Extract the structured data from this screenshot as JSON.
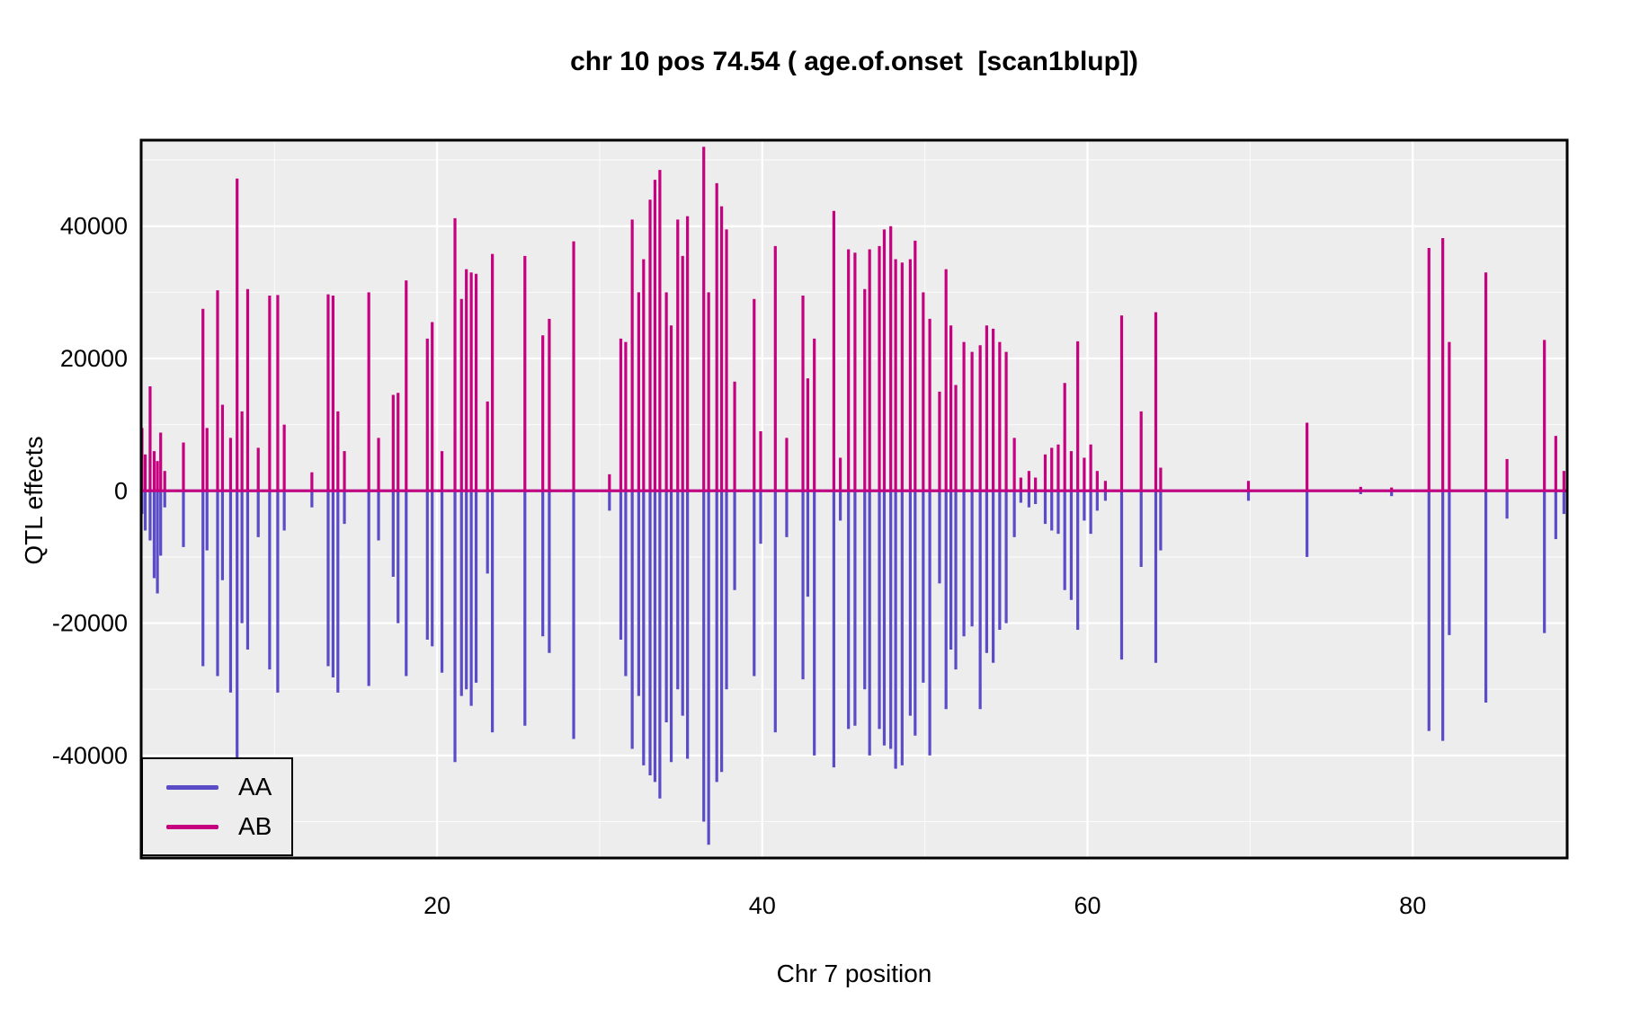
{
  "title": "chr 10 pos 74.54 ( age.of.onset  [scan1blup])",
  "colors": {
    "aa_line": "#5A4BC7",
    "ab_line": "#C5017F",
    "panel_bg": "#EDEDED",
    "grid_major": "#FFFFFF",
    "grid_minor": "#FFFFFF",
    "panel_border": "#000000",
    "text": "#000000"
  },
  "legend": {
    "entries": [
      {
        "label": "AA",
        "color": "#5A4BC7"
      },
      {
        "label": "AB",
        "color": "#C5017F"
      }
    ]
  },
  "chart_data": {
    "type": "line",
    "subtype": "vertical-spike-effect-plot",
    "title": "chr 10 pos 74.54 ( age.of.onset  [scan1blup])",
    "xlabel": "Chr 7 position",
    "ylabel": "QTL effects",
    "xlim": [
      1.8,
      89.5
    ],
    "ylim": [
      -55500,
      53000
    ],
    "x_ticks": [
      20,
      40,
      60,
      80
    ],
    "y_ticks": [
      -40000,
      -20000,
      0,
      20000,
      40000
    ],
    "grid": {
      "minor_x": [
        10,
        30,
        50,
        70
      ],
      "minor_y": [
        -50000,
        -30000,
        -10000,
        10000,
        30000,
        50000
      ],
      "style": "white lines on gray panel"
    },
    "legend_position": "bottom-left",
    "baseline": 0,
    "series": [
      {
        "name": "AA",
        "color": "#5A4BC7",
        "points": [
          [
            1.85,
            -3500
          ],
          [
            2.05,
            -6000
          ],
          [
            2.35,
            -7500
          ],
          [
            2.6,
            -13200
          ],
          [
            2.8,
            -15500
          ],
          [
            3.0,
            -9800
          ],
          [
            3.25,
            -2500
          ],
          [
            4.4,
            -8500
          ],
          [
            5.6,
            -26500
          ],
          [
            5.85,
            -9000
          ],
          [
            6.5,
            -28000
          ],
          [
            6.8,
            -13500
          ],
          [
            7.3,
            -30500
          ],
          [
            7.7,
            -41000
          ],
          [
            8.0,
            -20000
          ],
          [
            8.35,
            -24000
          ],
          [
            9.0,
            -7000
          ],
          [
            9.7,
            -27000
          ],
          [
            10.2,
            -30500
          ],
          [
            10.6,
            -6000
          ],
          [
            12.3,
            -2500
          ],
          [
            13.3,
            -26500
          ],
          [
            13.6,
            -28200
          ],
          [
            13.9,
            -30500
          ],
          [
            14.3,
            -5000
          ],
          [
            15.8,
            -29500
          ],
          [
            16.4,
            -7500
          ],
          [
            17.3,
            -13000
          ],
          [
            17.6,
            -20000
          ],
          [
            18.1,
            -28000
          ],
          [
            19.4,
            -22500
          ],
          [
            19.7,
            -23500
          ],
          [
            20.3,
            -27500
          ],
          [
            21.1,
            -41000
          ],
          [
            21.5,
            -31000
          ],
          [
            21.8,
            -30000
          ],
          [
            22.1,
            -32500
          ],
          [
            22.4,
            -29000
          ],
          [
            23.1,
            -12500
          ],
          [
            23.4,
            -36500
          ],
          [
            25.4,
            -35500
          ],
          [
            26.5,
            -22000
          ],
          [
            26.9,
            -24500
          ],
          [
            28.4,
            -37500
          ],
          [
            30.6,
            -3000
          ],
          [
            31.3,
            -22500
          ],
          [
            31.6,
            -28000
          ],
          [
            32.0,
            -39000
          ],
          [
            32.4,
            -31000
          ],
          [
            32.7,
            -41500
          ],
          [
            33.1,
            -43000
          ],
          [
            33.4,
            -44000
          ],
          [
            33.7,
            -46500
          ],
          [
            34.1,
            -35000
          ],
          [
            34.4,
            -41000
          ],
          [
            34.8,
            -30000
          ],
          [
            35.1,
            -34000
          ],
          [
            35.4,
            -40500
          ],
          [
            36.4,
            -50000
          ],
          [
            36.7,
            -53500
          ],
          [
            37.2,
            -44000
          ],
          [
            37.5,
            -42500
          ],
          [
            37.8,
            -30000
          ],
          [
            38.3,
            -15000
          ],
          [
            39.5,
            -28000
          ],
          [
            39.9,
            -8000
          ],
          [
            40.8,
            -36500
          ],
          [
            41.5,
            -7000
          ],
          [
            42.5,
            -28500
          ],
          [
            42.8,
            -16000
          ],
          [
            43.2,
            -40000
          ],
          [
            44.4,
            -41800
          ],
          [
            44.8,
            -4500
          ],
          [
            45.3,
            -36000
          ],
          [
            45.7,
            -35500
          ],
          [
            46.3,
            -30000
          ],
          [
            46.6,
            -40000
          ],
          [
            47.2,
            -36000
          ],
          [
            47.5,
            -38500
          ],
          [
            47.9,
            -39000
          ],
          [
            48.2,
            -42000
          ],
          [
            48.6,
            -41500
          ],
          [
            49.1,
            -34000
          ],
          [
            49.4,
            -37000
          ],
          [
            49.9,
            -29000
          ],
          [
            50.3,
            -40000
          ],
          [
            50.9,
            -14000
          ],
          [
            51.3,
            -33000
          ],
          [
            51.6,
            -24000
          ],
          [
            51.9,
            -27000
          ],
          [
            52.4,
            -22000
          ],
          [
            52.9,
            -20500
          ],
          [
            53.4,
            -33000
          ],
          [
            53.8,
            -24500
          ],
          [
            54.2,
            -26000
          ],
          [
            54.6,
            -21000
          ],
          [
            55.0,
            -20000
          ],
          [
            55.5,
            -7000
          ],
          [
            55.9,
            -1800
          ],
          [
            56.4,
            -2500
          ],
          [
            56.8,
            -2000
          ],
          [
            57.4,
            -5000
          ],
          [
            57.8,
            -6000
          ],
          [
            58.2,
            -6500
          ],
          [
            58.6,
            -15000
          ],
          [
            59.0,
            -16500
          ],
          [
            59.4,
            -21000
          ],
          [
            59.8,
            -4500
          ],
          [
            60.2,
            -6500
          ],
          [
            60.6,
            -3000
          ],
          [
            61.1,
            -1500
          ],
          [
            62.1,
            -25500
          ],
          [
            63.3,
            -11500
          ],
          [
            64.2,
            -26000
          ],
          [
            64.5,
            -9000
          ],
          [
            69.9,
            -1500
          ],
          [
            73.5,
            -10000
          ],
          [
            76.8,
            -500
          ],
          [
            78.7,
            -800
          ],
          [
            81.0,
            -36300
          ],
          [
            81.85,
            -37800
          ],
          [
            82.25,
            -21800
          ],
          [
            84.5,
            -32000
          ],
          [
            85.8,
            -4200
          ],
          [
            88.1,
            -21500
          ],
          [
            88.8,
            -7300
          ],
          [
            89.3,
            -3500
          ]
        ]
      },
      {
        "name": "AB",
        "color": "#C5017F",
        "points": [
          [
            1.85,
            9500
          ],
          [
            2.05,
            5500
          ],
          [
            2.35,
            15800
          ],
          [
            2.6,
            6000
          ],
          [
            2.8,
            4500
          ],
          [
            3.0,
            8800
          ],
          [
            3.25,
            3000
          ],
          [
            4.4,
            7300
          ],
          [
            5.6,
            27500
          ],
          [
            5.85,
            9500
          ],
          [
            6.5,
            30300
          ],
          [
            6.8,
            13000
          ],
          [
            7.3,
            8000
          ],
          [
            7.7,
            47200
          ],
          [
            8.0,
            12000
          ],
          [
            8.35,
            30500
          ],
          [
            9.0,
            6500
          ],
          [
            9.7,
            29500
          ],
          [
            10.2,
            29600
          ],
          [
            10.6,
            10000
          ],
          [
            12.3,
            2800
          ],
          [
            13.3,
            29700
          ],
          [
            13.6,
            29500
          ],
          [
            13.9,
            12000
          ],
          [
            14.3,
            6000
          ],
          [
            15.8,
            30000
          ],
          [
            16.4,
            8000
          ],
          [
            17.3,
            14500
          ],
          [
            17.6,
            14800
          ],
          [
            18.1,
            31800
          ],
          [
            19.4,
            23000
          ],
          [
            19.7,
            25500
          ],
          [
            20.3,
            6000
          ],
          [
            21.1,
            41200
          ],
          [
            21.5,
            29000
          ],
          [
            21.8,
            33500
          ],
          [
            22.1,
            33000
          ],
          [
            22.4,
            32800
          ],
          [
            23.1,
            13500
          ],
          [
            23.4,
            35800
          ],
          [
            25.4,
            35500
          ],
          [
            26.5,
            23500
          ],
          [
            26.9,
            26000
          ],
          [
            28.4,
            37700
          ],
          [
            30.6,
            2500
          ],
          [
            31.3,
            23000
          ],
          [
            31.6,
            22500
          ],
          [
            32.0,
            41000
          ],
          [
            32.4,
            30000
          ],
          [
            32.7,
            35000
          ],
          [
            33.1,
            44000
          ],
          [
            33.4,
            47000
          ],
          [
            33.7,
            48500
          ],
          [
            34.1,
            30000
          ],
          [
            34.4,
            25000
          ],
          [
            34.8,
            41000
          ],
          [
            35.1,
            35500
          ],
          [
            35.4,
            41500
          ],
          [
            36.4,
            52000
          ],
          [
            36.7,
            30000
          ],
          [
            37.2,
            46500
          ],
          [
            37.5,
            43000
          ],
          [
            37.8,
            39500
          ],
          [
            38.3,
            16500
          ],
          [
            39.5,
            29000
          ],
          [
            39.9,
            9000
          ],
          [
            40.8,
            37000
          ],
          [
            41.5,
            8000
          ],
          [
            42.5,
            29500
          ],
          [
            42.8,
            17000
          ],
          [
            43.2,
            23000
          ],
          [
            44.4,
            42300
          ],
          [
            44.8,
            5000
          ],
          [
            45.3,
            36500
          ],
          [
            45.7,
            36000
          ],
          [
            46.3,
            30500
          ],
          [
            46.6,
            36500
          ],
          [
            47.2,
            37000
          ],
          [
            47.5,
            39500
          ],
          [
            47.9,
            40000
          ],
          [
            48.2,
            35000
          ],
          [
            48.6,
            34500
          ],
          [
            49.1,
            35000
          ],
          [
            49.4,
            37800
          ],
          [
            49.9,
            30000
          ],
          [
            50.3,
            26000
          ],
          [
            50.9,
            15000
          ],
          [
            51.3,
            33500
          ],
          [
            51.6,
            25000
          ],
          [
            51.9,
            16000
          ],
          [
            52.4,
            22500
          ],
          [
            52.9,
            21000
          ],
          [
            53.4,
            22000
          ],
          [
            53.8,
            25000
          ],
          [
            54.2,
            24500
          ],
          [
            54.6,
            22500
          ],
          [
            55.0,
            21000
          ],
          [
            55.5,
            8000
          ],
          [
            55.9,
            2000
          ],
          [
            56.4,
            3000
          ],
          [
            56.8,
            2000
          ],
          [
            57.4,
            5500
          ],
          [
            57.8,
            6500
          ],
          [
            58.2,
            7000
          ],
          [
            58.6,
            16300
          ],
          [
            59.0,
            6000
          ],
          [
            59.4,
            22600
          ],
          [
            59.8,
            5000
          ],
          [
            60.2,
            7000
          ],
          [
            60.6,
            3000
          ],
          [
            61.1,
            1500
          ],
          [
            62.1,
            26500
          ],
          [
            63.3,
            12000
          ],
          [
            64.2,
            27000
          ],
          [
            64.5,
            3500
          ],
          [
            69.9,
            1500
          ],
          [
            73.5,
            10300
          ],
          [
            76.8,
            600
          ],
          [
            78.7,
            500
          ],
          [
            81.0,
            36700
          ],
          [
            81.85,
            38200
          ],
          [
            82.25,
            22500
          ],
          [
            84.5,
            33000
          ],
          [
            85.8,
            4800
          ],
          [
            88.1,
            22800
          ],
          [
            88.8,
            8300
          ],
          [
            89.3,
            3000
          ]
        ]
      }
    ]
  }
}
